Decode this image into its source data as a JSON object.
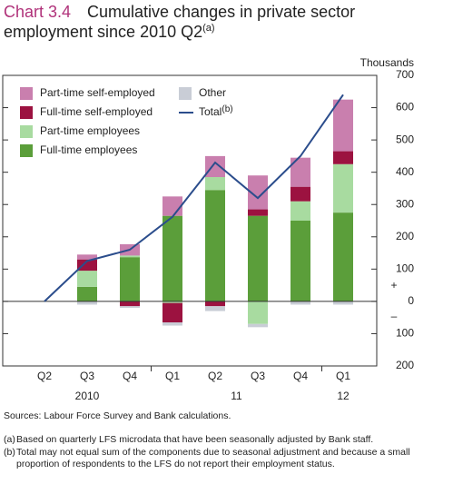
{
  "chart_data": {
    "type": "bar",
    "title_label": "Chart 3.4",
    "title": "Cumulative changes in private sector",
    "title_line2": "employment since 2010 Q2",
    "title_note": "(a)",
    "y_axis_label": "Thousands",
    "axis_signs": [
      "+",
      "–"
    ],
    "categories": [
      "Q2",
      "Q3",
      "Q4",
      "Q1",
      "Q2",
      "Q3",
      "Q4",
      "Q1"
    ],
    "year_labels": [
      "2010",
      null,
      null,
      "11",
      null,
      null,
      null,
      "12"
    ],
    "series": [
      {
        "name": "Full-time employees",
        "color": "#5b9e3a",
        "values": [
          null,
          45,
          137,
          265,
          345,
          265,
          250,
          275
        ]
      },
      {
        "name": "Part-time employees",
        "color": "#a8dba0",
        "values": [
          null,
          50,
          5,
          -5,
          40,
          -70,
          60,
          150
        ]
      },
      {
        "name": "Full-time self-employed",
        "color": "#9c1240",
        "values": [
          null,
          35,
          -15,
          -60,
          -15,
          20,
          45,
          40
        ]
      },
      {
        "name": "Part-time self-employed",
        "color": "#c97fae",
        "values": [
          null,
          15,
          35,
          60,
          65,
          105,
          90,
          160
        ]
      },
      {
        "name": "Other",
        "color": "#c9cdd6",
        "values": [
          null,
          -10,
          -5,
          -10,
          -15,
          -10,
          -10,
          -10
        ]
      },
      {
        "name": "Total",
        "name_note": "(b)",
        "type": "line",
        "color": "#2b4d8c",
        "values": [
          0,
          125,
          160,
          262,
          430,
          320,
          450,
          640
        ]
      }
    ],
    "ylim": [
      -200,
      700
    ],
    "yticks": [
      {
        "value": -200,
        "label": "200"
      },
      {
        "value": -100,
        "label": "100"
      },
      0,
      100,
      200,
      300,
      400,
      500,
      600,
      700
    ],
    "sources": "Sources:  Labour Force Survey and Bank calculations.",
    "footnotes": [
      {
        "mark": "(a)",
        "text": "Based on quarterly LFS microdata that have been seasonally adjusted by Bank staff."
      },
      {
        "mark": "(b)",
        "text": "Total may not equal sum of the components due to seasonal adjustment and because a small proportion of respondents to the LFS do not report their employment status."
      }
    ]
  }
}
